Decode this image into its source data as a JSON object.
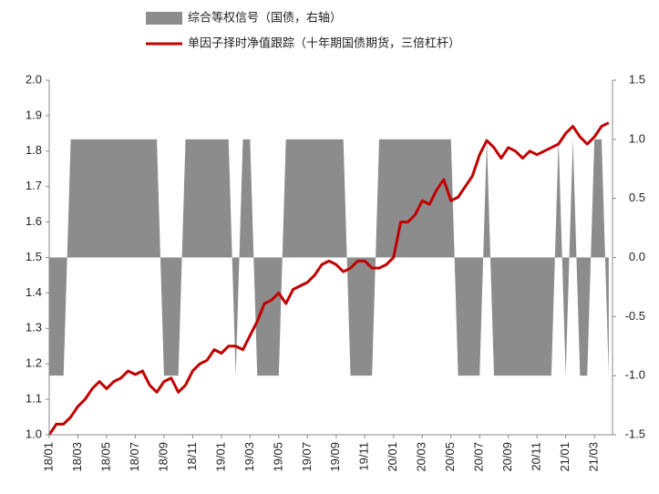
{
  "chart_data": {
    "type": "line",
    "categories": [
      "18/01",
      null,
      null,
      null,
      "18/03",
      null,
      null,
      null,
      "18/05",
      null,
      null,
      null,
      "18/07",
      null,
      null,
      null,
      "18/09",
      null,
      null,
      null,
      "18/11",
      null,
      null,
      null,
      "19/01",
      null,
      null,
      null,
      "19/03",
      null,
      null,
      null,
      "19/05",
      null,
      null,
      null,
      "19/07",
      null,
      null,
      null,
      "19/09",
      null,
      null,
      null,
      "19/11",
      null,
      null,
      null,
      "20/01",
      null,
      null,
      null,
      "20/03",
      null,
      null,
      null,
      "20/05",
      null,
      null,
      null,
      "20/07",
      null,
      null,
      null,
      "20/09",
      null,
      null,
      null,
      "20/11",
      null,
      null,
      null,
      "21/01",
      null,
      null,
      null,
      "21/03",
      null,
      null
    ],
    "series": [
      {
        "name": "综合等权信号（国债，右轴）",
        "type": "area",
        "axis": "y2",
        "color": "#8c8c8c",
        "values": [
          -1,
          -1,
          -1,
          1,
          1,
          1,
          1,
          1,
          1,
          1,
          1,
          1,
          1,
          1,
          1,
          1,
          -1,
          -1,
          -1,
          1,
          1,
          1,
          1,
          1,
          1,
          1,
          -1,
          1,
          1,
          -1,
          -1,
          -1,
          -1,
          1,
          1,
          1,
          1,
          1,
          1,
          1,
          1,
          1,
          -1,
          -1,
          -1,
          -1,
          1,
          1,
          1,
          1,
          1,
          1,
          1,
          1,
          1,
          1,
          1,
          -1,
          -1,
          -1,
          -1,
          1,
          -1,
          -1,
          -1,
          -1,
          -1,
          -1,
          -1,
          -1,
          -1,
          1,
          -1,
          1,
          -1,
          -1,
          1,
          1,
          -1
        ]
      },
      {
        "name": "单因子择时净值跟踪（十年期国债期货，三倍杠杆）",
        "type": "line",
        "color": "#c00000",
        "values": [
          1.0,
          1.03,
          1.03,
          1.05,
          1.08,
          1.1,
          1.13,
          1.15,
          1.13,
          1.15,
          1.16,
          1.18,
          1.17,
          1.18,
          1.14,
          1.12,
          1.15,
          1.16,
          1.12,
          1.14,
          1.18,
          1.2,
          1.21,
          1.24,
          1.23,
          1.25,
          1.25,
          1.24,
          1.28,
          1.32,
          1.37,
          1.38,
          1.4,
          1.37,
          1.41,
          1.42,
          1.43,
          1.45,
          1.48,
          1.49,
          1.48,
          1.46,
          1.47,
          1.49,
          1.49,
          1.47,
          1.47,
          1.48,
          1.5,
          1.6,
          1.6,
          1.62,
          1.66,
          1.65,
          1.69,
          1.72,
          1.66,
          1.67,
          1.7,
          1.73,
          1.79,
          1.83,
          1.81,
          1.78,
          1.81,
          1.8,
          1.78,
          1.8,
          1.79,
          1.8,
          1.81,
          1.82,
          1.85,
          1.87,
          1.84,
          1.82,
          1.84,
          1.87,
          1.88
        ]
      }
    ],
    "ylim": [
      1.0,
      2.0
    ],
    "yticks": [
      {
        "value": 1.0,
        "label": "1.0"
      },
      1.1,
      1.2,
      1.3,
      1.4,
      1.5,
      1.6,
      1.7,
      1.8,
      1.9,
      {
        "value": 2.0,
        "label": "2.0"
      }
    ],
    "y2lim": [
      -1.5,
      1.5
    ],
    "y2ticks": [
      -1.5,
      {
        "value": -1.0,
        "label": "-1.0"
      },
      -0.5,
      {
        "value": 0.0,
        "label": "0.0"
      },
      0.5,
      {
        "value": 1.0,
        "label": "1.0"
      },
      1.5
    ],
    "legend": "top"
  }
}
